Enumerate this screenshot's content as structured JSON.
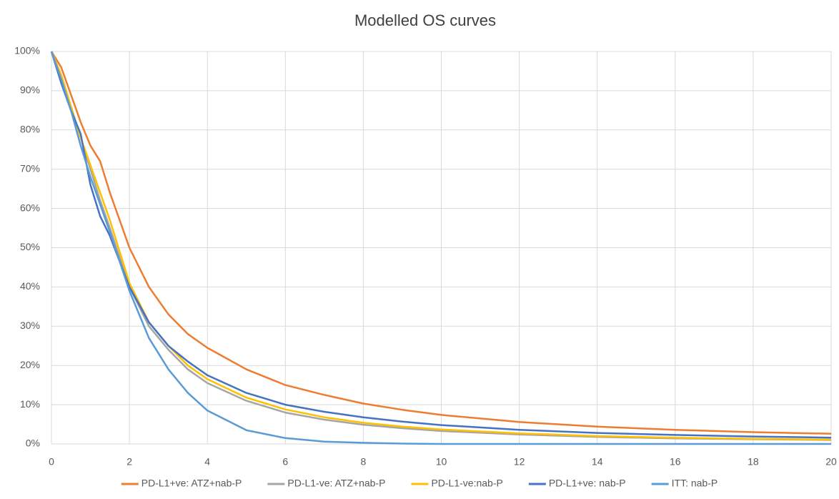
{
  "chart_data": {
    "type": "line",
    "title": "Modelled OS curves",
    "x": [
      0,
      0.25,
      0.5,
      0.75,
      1,
      1.25,
      1.5,
      2,
      2.5,
      3,
      3.5,
      4,
      5,
      6,
      7,
      8,
      9,
      10,
      12,
      14,
      16,
      18,
      20
    ],
    "series": [
      {
        "name": "PD-L1+ve: ATZ+nab-P",
        "color": "#ed7d31",
        "values": [
          100,
          96,
          89,
          82,
          76,
          72,
          64,
          50,
          40,
          33,
          28,
          24.5,
          19,
          15,
          12.5,
          10.3,
          8.7,
          7.4,
          5.6,
          4.4,
          3.6,
          3,
          2.6
        ]
      },
      {
        "name": "PD-L1-ve: ATZ+nab-P",
        "color": "#a5a5a5",
        "values": [
          100,
          94,
          86,
          78,
          70,
          62,
          55,
          40,
          30,
          24,
          19,
          15.5,
          11,
          8,
          6.2,
          4.9,
          4,
          3.3,
          2.4,
          1.8,
          1.4,
          1.2,
          1
        ]
      },
      {
        "name": "PD-L1-ve:nab-P",
        "color": "#ffc000",
        "values": [
          100,
          94,
          86,
          78,
          71,
          64,
          57,
          41,
          31,
          25,
          20,
          16.5,
          11.8,
          8.8,
          6.8,
          5.4,
          4.4,
          3.7,
          2.7,
          2,
          1.6,
          1.3,
          1.1
        ]
      },
      {
        "name": "PD-L1+ve: nab-P",
        "color": "#4472c4",
        "values": [
          100,
          92,
          85,
          79,
          66,
          58,
          53,
          40,
          31,
          25,
          21,
          17.5,
          13,
          10,
          8.2,
          6.8,
          5.7,
          4.8,
          3.6,
          2.8,
          2.3,
          1.9,
          1.6
        ]
      },
      {
        "name": "ITT: nab-P",
        "color": "#5b9bd5",
        "values": [
          100,
          93,
          85,
          76,
          68,
          61,
          54,
          39,
          27,
          19,
          13,
          8.5,
          3.5,
          1.5,
          0.6,
          0.3,
          0.1,
          0,
          0,
          0,
          0,
          0,
          0
        ]
      }
    ],
    "xlim": [
      0,
      20
    ],
    "xticks": [
      0,
      2,
      4,
      6,
      8,
      10,
      12,
      14,
      16,
      18,
      20
    ],
    "ylim": [
      0,
      100
    ],
    "yticks": [
      {
        "value": 0,
        "label": "0%"
      },
      {
        "value": 10,
        "label": "10%"
      },
      {
        "value": 20,
        "label": "20%"
      },
      {
        "value": 30,
        "label": "30%"
      },
      {
        "value": 40,
        "label": "40%"
      },
      {
        "value": 50,
        "label": "50%"
      },
      {
        "value": 60,
        "label": "60%"
      },
      {
        "value": 70,
        "label": "70%"
      },
      {
        "value": 80,
        "label": "80%"
      },
      {
        "value": 90,
        "label": "90%"
      },
      {
        "value": 100,
        "label": "100%"
      }
    ],
    "grid": true,
    "legend": "bottom"
  }
}
